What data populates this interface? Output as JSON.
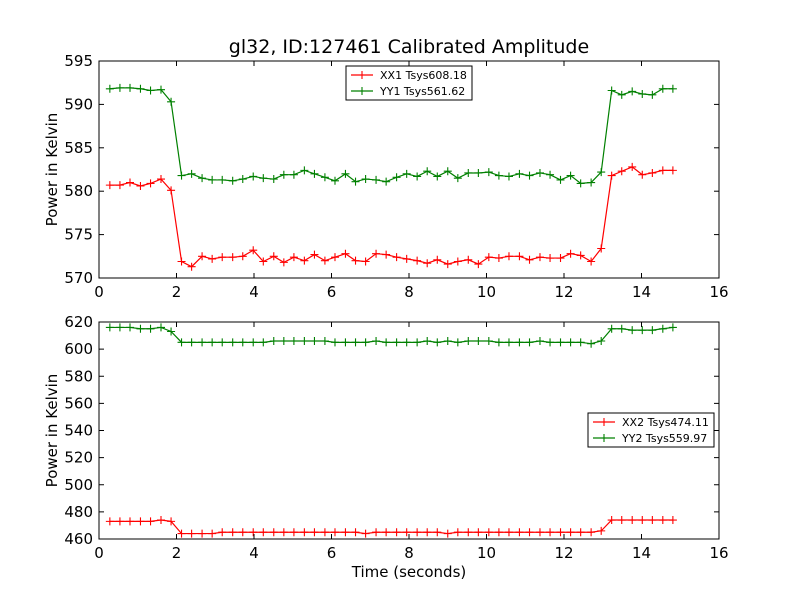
{
  "chart_data": [
    {
      "type": "line",
      "title": "gl32, ID:127461 Calibrated Amplitude",
      "xlabel": "",
      "ylabel": "Power in Kelvin",
      "xlim": [
        0,
        16
      ],
      "ylim": [
        570,
        595
      ],
      "xticks": [
        0,
        2,
        4,
        6,
        8,
        10,
        12,
        14,
        16
      ],
      "yticks": [
        570,
        575,
        580,
        585,
        590,
        595
      ],
      "grid": false,
      "legend_position": "top-center",
      "x": [
        0.28,
        0.54,
        0.8,
        1.07,
        1.33,
        1.6,
        1.86,
        2.13,
        2.39,
        2.66,
        2.92,
        3.18,
        3.45,
        3.71,
        3.98,
        4.24,
        4.51,
        4.77,
        5.03,
        5.3,
        5.56,
        5.83,
        6.09,
        6.36,
        6.62,
        6.88,
        7.15,
        7.41,
        7.68,
        7.94,
        8.21,
        8.47,
        8.73,
        9.0,
        9.26,
        9.53,
        9.79,
        10.06,
        10.32,
        10.58,
        10.85,
        11.11,
        11.38,
        11.64,
        11.91,
        12.17,
        12.43,
        12.7,
        12.96,
        13.23,
        13.49,
        13.76,
        14.02,
        14.28,
        14.55,
        14.81
      ],
      "series": [
        {
          "name": "XX1 Tsys608.18",
          "color": "#ff0000",
          "values": [
            580.7,
            580.7,
            581.0,
            580.6,
            580.9,
            581.4,
            580.1,
            571.9,
            571.3,
            572.5,
            572.2,
            572.4,
            572.4,
            572.5,
            573.2,
            571.9,
            572.5,
            571.8,
            572.4,
            572.0,
            572.7,
            572.0,
            572.4,
            572.8,
            572.0,
            571.9,
            572.8,
            572.7,
            572.4,
            572.2,
            572.0,
            571.7,
            572.1,
            571.6,
            571.9,
            572.1,
            571.6,
            572.4,
            572.3,
            572.5,
            572.5,
            572.1,
            572.4,
            572.3,
            572.3,
            572.8,
            572.6,
            571.9,
            573.4,
            581.8,
            582.3,
            582.8,
            581.9,
            582.1,
            582.4,
            582.4
          ],
          "x": [
            0.28,
            0.54,
            0.8,
            1.07,
            1.33,
            1.6,
            1.86,
            2.13,
            2.39,
            2.66,
            2.92,
            3.18,
            3.45,
            3.71,
            3.98,
            4.24,
            4.51,
            4.77,
            5.03,
            5.3,
            5.56,
            5.83,
            6.09,
            6.36,
            6.62,
            6.88,
            7.15,
            7.41,
            7.68,
            7.94,
            8.21,
            8.47,
            8.73,
            9.0,
            9.26,
            9.53,
            9.79,
            10.06,
            10.32,
            10.58,
            10.85,
            11.11,
            11.38,
            11.64,
            11.91,
            12.17,
            12.43,
            12.7,
            12.96,
            13.23,
            13.49,
            13.76,
            14.02,
            14.28,
            14.55,
            14.81
          ]
        },
        {
          "name": "YY1 Tsys561.62",
          "color": "#008000",
          "values": [
            591.8,
            591.9,
            591.9,
            591.8,
            591.6,
            591.7,
            590.3,
            581.8,
            582.0,
            581.5,
            581.3,
            581.3,
            581.2,
            581.4,
            581.7,
            581.5,
            581.4,
            581.9,
            581.9,
            582.4,
            582.0,
            581.6,
            581.2,
            582.0,
            581.1,
            581.4,
            581.3,
            581.1,
            581.6,
            582.0,
            581.7,
            582.3,
            581.7,
            582.3,
            581.5,
            582.1,
            582.1,
            582.2,
            581.8,
            581.7,
            582.0,
            581.8,
            582.1,
            581.9,
            581.3,
            581.8,
            580.9,
            581.0,
            582.2,
            591.6,
            591.1,
            591.5,
            591.2,
            591.1,
            591.8,
            591.8
          ],
          "x": [
            0.28,
            0.54,
            0.8,
            1.07,
            1.33,
            1.6,
            1.86,
            2.13,
            2.39,
            2.66,
            2.92,
            3.18,
            3.45,
            3.71,
            3.98,
            4.24,
            4.51,
            4.77,
            5.03,
            5.3,
            5.56,
            5.83,
            6.09,
            6.36,
            6.62,
            6.88,
            7.15,
            7.41,
            7.68,
            7.94,
            8.21,
            8.47,
            8.73,
            9.0,
            9.26,
            9.53,
            9.79,
            10.06,
            10.32,
            10.58,
            10.85,
            11.11,
            11.38,
            11.64,
            11.91,
            12.17,
            12.43,
            12.7,
            12.96,
            13.23,
            13.49,
            13.76,
            14.02,
            14.28,
            14.55,
            14.81
          ]
        }
      ]
    },
    {
      "type": "line",
      "title": "",
      "xlabel": "Time (seconds)",
      "ylabel": "Power in Kelvin",
      "xlim": [
        0,
        16
      ],
      "ylim": [
        460,
        620
      ],
      "xticks": [
        0,
        2,
        4,
        6,
        8,
        10,
        12,
        14,
        16
      ],
      "yticks": [
        460,
        480,
        500,
        520,
        540,
        560,
        580,
        600,
        620
      ],
      "grid": false,
      "legend_position": "center-right",
      "series": [
        {
          "name": "XX2 Tsys474.11",
          "color": "#ff0000",
          "values": [
            473,
            473,
            473,
            473,
            473,
            474,
            473,
            464,
            464,
            464,
            464,
            465,
            465,
            465,
            465,
            465,
            465,
            465,
            465,
            465,
            465,
            465,
            465,
            465,
            465,
            464,
            465,
            465,
            465,
            465,
            465,
            465,
            465,
            464,
            465,
            465,
            465,
            465,
            465,
            465,
            465,
            465,
            465,
            465,
            465,
            465,
            465,
            465,
            466,
            474,
            474,
            474,
            474,
            474,
            474,
            474
          ],
          "x": [
            0.28,
            0.54,
            0.8,
            1.07,
            1.33,
            1.6,
            1.86,
            2.13,
            2.39,
            2.66,
            2.92,
            3.18,
            3.45,
            3.71,
            3.98,
            4.24,
            4.51,
            4.77,
            5.03,
            5.3,
            5.56,
            5.83,
            6.09,
            6.36,
            6.62,
            6.88,
            7.15,
            7.41,
            7.68,
            7.94,
            8.21,
            8.47,
            8.73,
            9.0,
            9.26,
            9.53,
            9.79,
            10.06,
            10.32,
            10.58,
            10.85,
            11.11,
            11.38,
            11.64,
            11.91,
            12.17,
            12.43,
            12.7,
            12.96,
            13.23,
            13.49,
            13.76,
            14.02,
            14.28,
            14.55,
            14.81
          ]
        },
        {
          "name": "YY2 Tsys559.97",
          "color": "#008000",
          "values": [
            616,
            616,
            616,
            615,
            615,
            616,
            613,
            605,
            605,
            605,
            605,
            605,
            605,
            605,
            605,
            605,
            606,
            606,
            606,
            606,
            606,
            606,
            605,
            605,
            605,
            605,
            606,
            605,
            605,
            605,
            605,
            606,
            605,
            606,
            605,
            606,
            606,
            606,
            605,
            605,
            605,
            605,
            606,
            605,
            605,
            605,
            605,
            604,
            606,
            615,
            615,
            614,
            614,
            614,
            615,
            616
          ],
          "x": [
            0.28,
            0.54,
            0.8,
            1.07,
            1.33,
            1.6,
            1.86,
            2.13,
            2.39,
            2.66,
            2.92,
            3.18,
            3.45,
            3.71,
            3.98,
            4.24,
            4.51,
            4.77,
            5.03,
            5.3,
            5.56,
            5.83,
            6.09,
            6.36,
            6.62,
            6.88,
            7.15,
            7.41,
            7.68,
            7.94,
            8.21,
            8.47,
            8.73,
            9.0,
            9.26,
            9.53,
            9.79,
            10.06,
            10.32,
            10.58,
            10.85,
            11.11,
            11.38,
            11.64,
            11.91,
            12.17,
            12.43,
            12.7,
            12.96,
            13.23,
            13.49,
            13.76,
            14.02,
            14.28,
            14.55,
            14.81
          ]
        }
      ]
    }
  ]
}
